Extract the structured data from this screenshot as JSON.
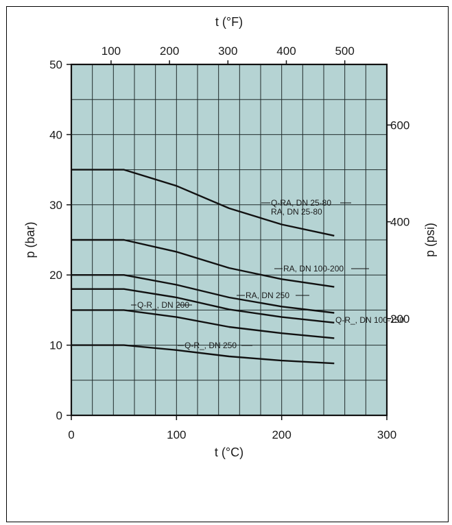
{
  "chart_data": {
    "type": "line",
    "xlabel": "t (°C)",
    "ylabel": "p (bar)",
    "x2label": "t (°F)",
    "y2label": "p (psi)",
    "xlim": [
      0,
      300
    ],
    "ylim": [
      0,
      50
    ],
    "x2lim": [
      32,
      572
    ],
    "y2lim": [
      0,
      725.19
    ],
    "x_ticks": [
      0,
      100,
      200,
      300
    ],
    "y_ticks": [
      0,
      10,
      20,
      30,
      40,
      50
    ],
    "x2_ticks": [
      100,
      200,
      300,
      400,
      500
    ],
    "y2_ticks": [
      200,
      400,
      600
    ],
    "grid": true,
    "colors": {
      "plot_background": "#b5d3d3",
      "grid": "#1f2a2a",
      "line": "#111111"
    },
    "series": [
      {
        "label": "Q-RA, DN 25-80\nRA, DN 25-80",
        "x": [
          0,
          50,
          100,
          150,
          200,
          250
        ],
        "y": [
          35,
          35,
          32.7,
          29.5,
          27.2,
          25.6
        ]
      },
      {
        "label": "RA, DN 100-200",
        "x": [
          0,
          50,
          100,
          150,
          200,
          250
        ],
        "y": [
          25,
          25,
          23.3,
          21,
          19.4,
          18.3
        ]
      },
      {
        "label": "RA, DN 250",
        "x": [
          0,
          50,
          100,
          150,
          200,
          250
        ],
        "y": [
          20,
          20,
          18.6,
          16.8,
          15.5,
          14.6
        ]
      },
      {
        "label": "Q-R_, DN 100-150",
        "x": [
          0,
          50,
          100,
          150,
          200,
          250
        ],
        "y": [
          18,
          18,
          16.8,
          15.1,
          14,
          13.2
        ]
      },
      {
        "label": "Q-R_, DN 200",
        "x": [
          0,
          50,
          100,
          150,
          200,
          250
        ],
        "y": [
          15,
          15,
          14,
          12.6,
          11.7,
          11
        ]
      },
      {
        "label": "Q-R_, DN 250",
        "x": [
          0,
          50,
          100,
          150,
          200,
          250
        ],
        "y": [
          10,
          10,
          9.3,
          8.4,
          7.8,
          7.4
        ]
      }
    ]
  }
}
